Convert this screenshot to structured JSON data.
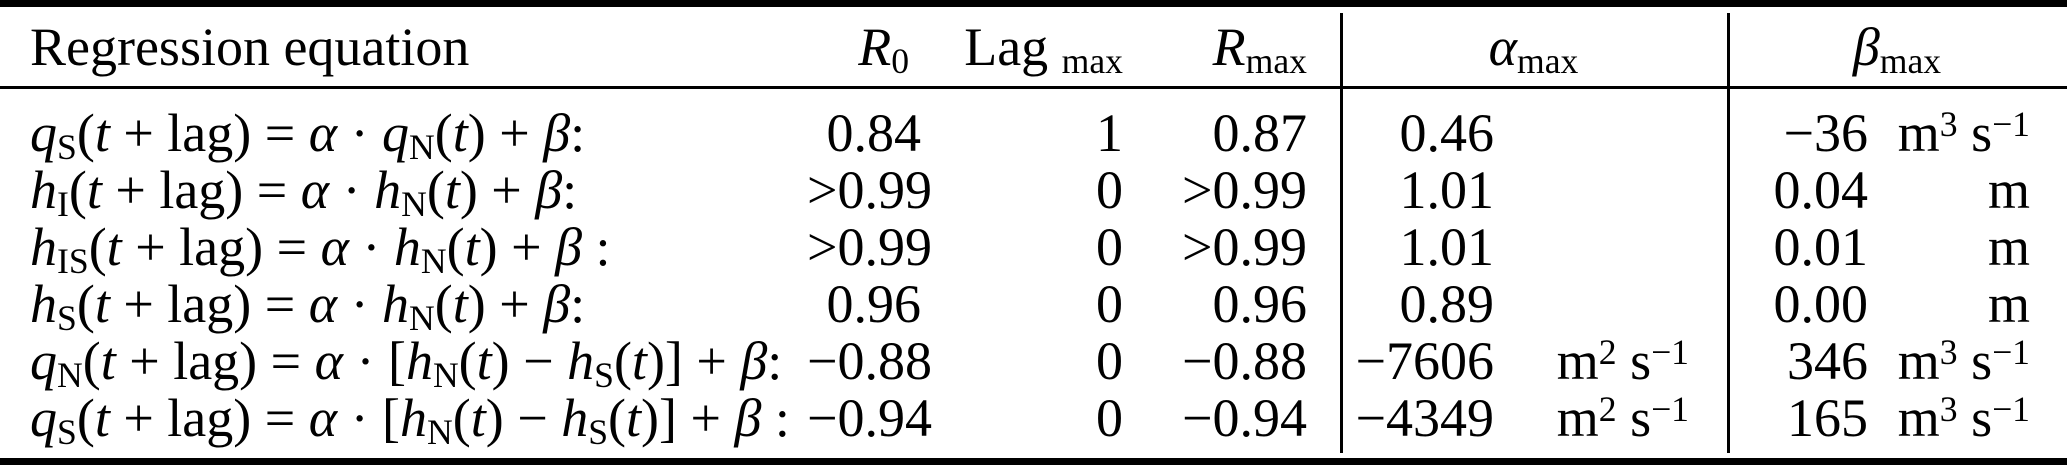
{
  "colors": {
    "text": "#000000",
    "background": "#ffffff",
    "rules": "#000000"
  },
  "table": {
    "header": {
      "equation": "Regression equation",
      "r0": [
        [
          "i",
          "R"
        ],
        [
          "sub",
          "0"
        ]
      ],
      "lag": [
        [
          "r",
          "Lag "
        ],
        [
          "sub",
          "max"
        ]
      ],
      "rmax": [
        [
          "i",
          "R"
        ],
        [
          "sub",
          "max"
        ]
      ],
      "alpha": [
        [
          "i",
          "α"
        ],
        [
          "sub",
          "max"
        ]
      ],
      "beta": [
        [
          "i",
          "β"
        ],
        [
          "sub",
          "max"
        ]
      ]
    },
    "rows": [
      {
        "equation": [
          [
            "i",
            "q"
          ],
          [
            "sub",
            "S"
          ],
          [
            "r",
            "("
          ],
          [
            "i",
            "t"
          ],
          [
            "r",
            " + lag) = "
          ],
          [
            "i",
            "α"
          ],
          [
            "r",
            " · "
          ],
          [
            "i",
            "q"
          ],
          [
            "sub",
            "N"
          ],
          [
            "r",
            "("
          ],
          [
            "i",
            "t"
          ],
          [
            "r",
            ") + "
          ],
          [
            "i",
            "β"
          ],
          [
            "r",
            ":"
          ]
        ],
        "r0": "0.84",
        "lag": "1",
        "rmax": "0.87",
        "alpha_value": "0.46",
        "alpha_unit": [],
        "beta_value": "−36",
        "beta_unit": [
          [
            "r",
            "m"
          ],
          [
            "sup",
            "3"
          ],
          [
            "r",
            " s"
          ],
          [
            "sup",
            "−1"
          ]
        ]
      },
      {
        "equation": [
          [
            "i",
            "h"
          ],
          [
            "sub",
            "I"
          ],
          [
            "r",
            "("
          ],
          [
            "i",
            "t"
          ],
          [
            "r",
            " + lag) = "
          ],
          [
            "i",
            "α"
          ],
          [
            "r",
            " · "
          ],
          [
            "i",
            "h"
          ],
          [
            "sub",
            "N"
          ],
          [
            "r",
            "("
          ],
          [
            "i",
            "t"
          ],
          [
            "r",
            ") + "
          ],
          [
            "i",
            "β"
          ],
          [
            "r",
            ":"
          ]
        ],
        "r0": ">0.99",
        "lag": "0",
        "rmax": ">0.99",
        "alpha_value": "1.01",
        "alpha_unit": [],
        "beta_value": "0.04",
        "beta_unit": [
          [
            "r",
            "m"
          ]
        ]
      },
      {
        "equation": [
          [
            "i",
            "h"
          ],
          [
            "sub",
            "IS"
          ],
          [
            "r",
            "("
          ],
          [
            "i",
            "t"
          ],
          [
            "r",
            " + lag) = "
          ],
          [
            "i",
            "α"
          ],
          [
            "r",
            " · "
          ],
          [
            "i",
            "h"
          ],
          [
            "sub",
            "N"
          ],
          [
            "r",
            "("
          ],
          [
            "i",
            "t"
          ],
          [
            "r",
            ") + "
          ],
          [
            "i",
            "β"
          ],
          [
            "r",
            " :"
          ]
        ],
        "r0": ">0.99",
        "lag": "0",
        "rmax": ">0.99",
        "alpha_value": "1.01",
        "alpha_unit": [],
        "beta_value": "0.01",
        "beta_unit": [
          [
            "r",
            "m"
          ]
        ]
      },
      {
        "equation": [
          [
            "i",
            "h"
          ],
          [
            "sub",
            "S"
          ],
          [
            "r",
            "("
          ],
          [
            "i",
            "t"
          ],
          [
            "r",
            " + lag) = "
          ],
          [
            "i",
            "α"
          ],
          [
            "r",
            " · "
          ],
          [
            "i",
            "h"
          ],
          [
            "sub",
            "N"
          ],
          [
            "r",
            "("
          ],
          [
            "i",
            "t"
          ],
          [
            "r",
            ") + "
          ],
          [
            "i",
            "β"
          ],
          [
            "r",
            ":"
          ]
        ],
        "r0": "0.96",
        "lag": "0",
        "rmax": "0.96",
        "alpha_value": "0.89",
        "alpha_unit": [],
        "beta_value": "0.00",
        "beta_unit": [
          [
            "r",
            "m"
          ]
        ]
      },
      {
        "equation": [
          [
            "i",
            "q"
          ],
          [
            "sub",
            "N"
          ],
          [
            "r",
            "("
          ],
          [
            "i",
            "t"
          ],
          [
            "r",
            " + lag) = "
          ],
          [
            "i",
            "α"
          ],
          [
            "r",
            " · ["
          ],
          [
            "i",
            "h"
          ],
          [
            "sub",
            "N"
          ],
          [
            "r",
            "("
          ],
          [
            "i",
            "t"
          ],
          [
            "r",
            ") − "
          ],
          [
            "i",
            "h"
          ],
          [
            "sub",
            "S"
          ],
          [
            "r",
            "("
          ],
          [
            "i",
            "t"
          ],
          [
            "r",
            ")] + "
          ],
          [
            "i",
            "β"
          ],
          [
            "r",
            ":"
          ]
        ],
        "r0": "−0.88",
        "lag": "0",
        "rmax": "−0.88",
        "alpha_value": "−7606",
        "alpha_unit": [
          [
            "r",
            "m"
          ],
          [
            "sup",
            "2"
          ],
          [
            "r",
            " s"
          ],
          [
            "sup",
            "−1"
          ]
        ],
        "beta_value": "346",
        "beta_unit": [
          [
            "r",
            "m"
          ],
          [
            "sup",
            "3"
          ],
          [
            "r",
            " s"
          ],
          [
            "sup",
            "−1"
          ]
        ]
      },
      {
        "equation": [
          [
            "i",
            "q"
          ],
          [
            "sub",
            "S"
          ],
          [
            "r",
            "("
          ],
          [
            "i",
            "t"
          ],
          [
            "r",
            " + lag) = "
          ],
          [
            "i",
            "α"
          ],
          [
            "r",
            " · ["
          ],
          [
            "i",
            "h"
          ],
          [
            "sub",
            "N"
          ],
          [
            "r",
            "("
          ],
          [
            "i",
            "t"
          ],
          [
            "r",
            ") − "
          ],
          [
            "i",
            "h"
          ],
          [
            "sub",
            "S"
          ],
          [
            "r",
            "("
          ],
          [
            "i",
            "t"
          ],
          [
            "r",
            ")] + "
          ],
          [
            "i",
            "β"
          ],
          [
            "r",
            " :"
          ]
        ],
        "r0": "−0.94",
        "lag": "0",
        "rmax": "−0.94",
        "alpha_value": "−4349",
        "alpha_unit": [
          [
            "r",
            "m"
          ],
          [
            "sup",
            "2"
          ],
          [
            "r",
            " s"
          ],
          [
            "sup",
            "−1"
          ]
        ],
        "beta_value": "165",
        "beta_unit": [
          [
            "r",
            "m"
          ],
          [
            "sup",
            "3"
          ],
          [
            "r",
            " s"
          ],
          [
            "sup",
            "−1"
          ]
        ]
      }
    ]
  }
}
